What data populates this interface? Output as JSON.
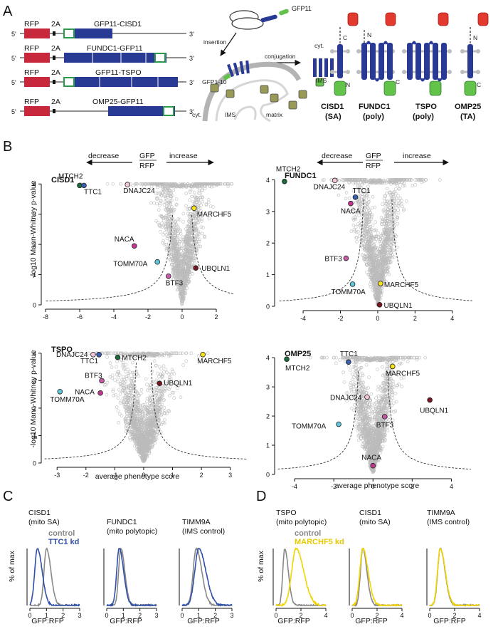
{
  "panel_labels": [
    "A",
    "B",
    "C",
    "D"
  ],
  "panel_a": {
    "constructs": [
      {
        "name": "GFP11-CISD1"
      },
      {
        "name": "FUNDC1-GFP11"
      },
      {
        "name": "GFP11-TSPO"
      },
      {
        "name": "OMP25-GFP11"
      }
    ],
    "rfp_label": "RFP",
    "t2a_label": "2A",
    "five_prime": "5'",
    "three_prime": "3'",
    "schematic": {
      "gfp11": "GFP11",
      "insertion": "insertion",
      "conjugation": "conjugation",
      "gfp1_10": "GFP1-10",
      "cyt": "cyt.",
      "ims": "IMS",
      "matrix": "matrix"
    },
    "topology": {
      "cyt": "cyt.",
      "ims": "IMS",
      "proteins": [
        {
          "name": "CISD1",
          "class": "(SA)",
          "nterm": "N",
          "cterm": "C"
        },
        {
          "name": "FUNDC1",
          "class": "(poly)",
          "nterm": "N",
          "cterm": "C"
        },
        {
          "name": "TSPO",
          "class": "(poly)",
          "nterm": "N",
          "cterm": "C"
        },
        {
          "name": "OMP25",
          "class": "(TA)",
          "nterm": "N",
          "cterm": "C"
        }
      ]
    }
  },
  "panel_b": {
    "direction_header": {
      "decrease": "decrease",
      "increase": "increase",
      "ratio_num": "GFP",
      "ratio_den": "RFP"
    },
    "ylabel": "-log10 Mann-Whitney p-value",
    "xlabel": "average phenotype score"
  },
  "panel_c": {
    "xlabel": "GFP:RFP",
    "ylabel": "% of max",
    "legend": {
      "control": "control",
      "kd": "TTC1 kd"
    },
    "plots": [
      {
        "title": "CISD1",
        "subtitle": "(mito SA)"
      },
      {
        "title": "FUNDC1",
        "subtitle": "(mito polytopic)"
      },
      {
        "title": "TIMM9A",
        "subtitle": "(IMS control)"
      }
    ]
  },
  "panel_d": {
    "xlabel": "GFP:RFP",
    "ylabel": "% of max",
    "legend": {
      "control": "control",
      "kd": "MARCHF5 kd"
    },
    "plots": [
      {
        "title": "TSPO",
        "subtitle": "(mito polytopic)"
      },
      {
        "title": "CISD1",
        "subtitle": "(mito SA)"
      },
      {
        "title": "TIMM9A",
        "subtitle": "(IMS control)"
      }
    ]
  },
  "colors": {
    "rfp": "#c8283b",
    "gfp_frame": "#2c9b4b",
    "gene": "#283a94",
    "gfp_barrel": "#63c24a",
    "red_barrel": "#e23a2f",
    "membrane": "#bdbdbd",
    "dots": "#bbbbbb",
    "ttc1": "#2f4fa8",
    "marchf5": "#f2d400",
    "control": "#888888",
    "MTCH2": "#1d6b3e",
    "TTC1": "#3a5fb0",
    "DNAJC24": "#f4c5d4",
    "MARCHF5": "#f7e11c",
    "NACA": "#c0398e",
    "TOMM70A": "#5ec7dc",
    "BTF3": "#c65aa6",
    "UBQLN1": "#7a1420"
  },
  "chart_data": [
    {
      "type": "scatter",
      "title": "CISD1",
      "xlabel": "average phenotype score",
      "ylabel": "-log10 Mann-Whitney p-value",
      "xlim": [
        -8,
        3
      ],
      "ylim": [
        0,
        4.1
      ],
      "xticks": [
        -8,
        -6,
        -4,
        -2,
        0,
        2
      ],
      "yticks": [
        0,
        1,
        2,
        3,
        4
      ],
      "cloud": {
        "count": 1500,
        "xspread": 0.7,
        "ymax": 4
      },
      "threshold": {
        "x0": 0.3,
        "c": 1.0
      },
      "highlights": [
        {
          "gene": "MTCH2",
          "x": -6.0,
          "y": 3.95
        },
        {
          "gene": "TTC1",
          "x": -5.75,
          "y": 3.95
        },
        {
          "gene": "DNAJC24",
          "x": -3.2,
          "y": 3.98
        },
        {
          "gene": "MARCHF5",
          "x": 0.7,
          "y": 3.2
        },
        {
          "gene": "NACA",
          "x": -2.8,
          "y": 1.95
        },
        {
          "gene": "TOMM70A",
          "x": -1.45,
          "y": 1.42
        },
        {
          "gene": "BTF3",
          "x": -0.8,
          "y": 0.95
        },
        {
          "gene": "UBQLN1",
          "x": 0.8,
          "y": 1.22
        }
      ]
    },
    {
      "type": "scatter",
      "title": "FUNDC1",
      "xlabel": "average phenotype score",
      "ylabel": "-log10 Mann-Whitney p-value",
      "xlim": [
        -5.3,
        5.0
      ],
      "ylim": [
        0,
        4.1
      ],
      "xticks": [
        -4,
        -2,
        0,
        2,
        4
      ],
      "yticks": [
        0,
        1,
        2,
        3,
        4
      ],
      "cloud": {
        "count": 1500,
        "xspread": 0.55,
        "ymax": 4
      },
      "threshold": {
        "x0": 0.6,
        "c": 0.8
      },
      "highlights": [
        {
          "gene": "MTCH2",
          "x": -5.0,
          "y": 3.95
        },
        {
          "gene": "DNAJC24",
          "x": -2.3,
          "y": 3.98
        },
        {
          "gene": "TTC1",
          "x": -1.2,
          "y": 3.45
        },
        {
          "gene": "NACA",
          "x": -1.45,
          "y": 3.25
        },
        {
          "gene": "BTF3",
          "x": -1.7,
          "y": 1.52
        },
        {
          "gene": "TOMM70A",
          "x": -1.35,
          "y": 0.7
        },
        {
          "gene": "MARCHF5",
          "x": 0.15,
          "y": 0.72
        },
        {
          "gene": "UBQLN1",
          "x": 0.1,
          "y": 0.05
        }
      ]
    },
    {
      "type": "scatter",
      "title": "TSPO",
      "xlabel": "average phenotype score",
      "ylabel": "-log10 Mann-Whitney p-value",
      "xlim": [
        -3.4,
        3.6
      ],
      "ylim": [
        0,
        4.1
      ],
      "xticks": [
        -3,
        -2,
        -1,
        0,
        1,
        2,
        3
      ],
      "yticks": [
        0,
        1,
        2,
        3,
        4
      ],
      "cloud": {
        "count": 1500,
        "xspread": 0.35,
        "ymax": 4
      },
      "threshold": {
        "x0": 0.2,
        "c": 0.5
      },
      "highlights": [
        {
          "gene": "DNAJC24",
          "x": -1.75,
          "y": 3.95
        },
        {
          "gene": "TTC1",
          "x": -1.55,
          "y": 3.95
        },
        {
          "gene": "MTCH2",
          "x": -0.9,
          "y": 3.85
        },
        {
          "gene": "MARCHF5",
          "x": 2.05,
          "y": 3.95
        },
        {
          "gene": "BTF3",
          "x": -1.45,
          "y": 3.0
        },
        {
          "gene": "NACA",
          "x": -1.5,
          "y": 2.55
        },
        {
          "gene": "UBQLN1",
          "x": 0.55,
          "y": 2.9
        },
        {
          "gene": "TOMM70A",
          "x": -2.9,
          "y": 2.6
        }
      ]
    },
    {
      "type": "scatter",
      "title": "OMP25",
      "xlabel": "average phenotype score",
      "ylabel": "-log10 Mann-Whitney p-value",
      "xlim": [
        -4.8,
        5.0
      ],
      "ylim": [
        0,
        4.1
      ],
      "xticks": [
        -4,
        -2,
        0,
        2,
        4
      ],
      "yticks": [
        0,
        1,
        2,
        3,
        4
      ],
      "cloud": {
        "count": 1500,
        "xspread": 0.5,
        "ymax": 4
      },
      "threshold": {
        "x0": 0.6,
        "c": 0.8
      },
      "highlights": [
        {
          "gene": "MTCH2",
          "x": -4.4,
          "y": 3.95
        },
        {
          "gene": "TTC1",
          "x": -1.25,
          "y": 3.85
        },
        {
          "gene": "MARCHF5",
          "x": 1.0,
          "y": 3.7
        },
        {
          "gene": "DNAJC24",
          "x": -0.3,
          "y": 2.65
        },
        {
          "gene": "UBQLN1",
          "x": 2.9,
          "y": 2.55
        },
        {
          "gene": "TOMM70A",
          "x": -1.75,
          "y": 1.72
        },
        {
          "gene": "BTF3",
          "x": 0.6,
          "y": 1.98
        },
        {
          "gene": "NACA",
          "x": 0.0,
          "y": 0.3
        }
      ]
    },
    {
      "type": "line",
      "title": "CISD1 (mito SA)",
      "xlabel": "GFP:RFP",
      "ylabel": "% of max",
      "xlim": [
        0,
        3
      ],
      "xticks": [
        0,
        1,
        2,
        3
      ],
      "ylim": [
        0,
        1
      ],
      "series": [
        {
          "name": "control",
          "mode": 1.0,
          "width": 0.28,
          "color": "#888888"
        },
        {
          "name": "TTC1 kd",
          "mode": 0.45,
          "width": 0.3,
          "color": "#2f4fa8"
        }
      ]
    },
    {
      "type": "line",
      "title": "FUNDC1 (mito polytopic)",
      "xlabel": "GFP:RFP",
      "ylabel": "% of max",
      "xlim": [
        0,
        3
      ],
      "xticks": [
        0,
        1,
        2,
        3
      ],
      "ylim": [
        0,
        1
      ],
      "series": [
        {
          "name": "control",
          "mode": 0.85,
          "width": 0.25,
          "color": "#888888"
        },
        {
          "name": "TTC1 kd",
          "mode": 0.75,
          "width": 0.28,
          "color": "#2f4fa8"
        }
      ]
    },
    {
      "type": "line",
      "title": "TIMM9A (IMS control)",
      "xlabel": "GFP:RFP",
      "ylabel": "% of max",
      "xlim": [
        0,
        3
      ],
      "xticks": [
        0,
        1,
        2,
        3
      ],
      "ylim": [
        0,
        1
      ],
      "series": [
        {
          "name": "control",
          "mode": 0.85,
          "width": 0.35,
          "color": "#888888"
        },
        {
          "name": "TTC1 kd",
          "mode": 1.0,
          "width": 0.45,
          "color": "#2f4fa8"
        }
      ]
    },
    {
      "type": "line",
      "title": "TSPO (mito polytopic)",
      "xlabel": "GFP:RFP",
      "ylabel": "% of max",
      "xlim": [
        0,
        4
      ],
      "xticks": [
        0,
        2,
        4
      ],
      "ylim": [
        0,
        1
      ],
      "series": [
        {
          "name": "control",
          "mode": 0.7,
          "width": 0.3,
          "color": "#888888"
        },
        {
          "name": "MARCHF5 kd",
          "mode": 1.6,
          "width": 0.65,
          "color": "#f2d400"
        }
      ]
    },
    {
      "type": "line",
      "title": "CISD1 (mito SA)",
      "xlabel": "GFP:RFP",
      "ylabel": "% of max",
      "xlim": [
        0,
        4
      ],
      "xticks": [
        0,
        2,
        4
      ],
      "ylim": [
        0,
        1
      ],
      "series": [
        {
          "name": "control",
          "mode": 0.85,
          "width": 0.35,
          "color": "#888888"
        },
        {
          "name": "MARCHF5 kd",
          "mode": 0.85,
          "width": 0.45,
          "color": "#f2d400"
        }
      ]
    },
    {
      "type": "line",
      "title": "TIMM9A (IMS control)",
      "xlabel": "GFP:RFP",
      "ylabel": "% of max",
      "xlim": [
        0,
        4
      ],
      "xticks": [
        0,
        2,
        4
      ],
      "ylim": [
        0,
        1
      ],
      "series": [
        {
          "name": "control",
          "mode": 0.85,
          "width": 0.4,
          "color": "#888888"
        },
        {
          "name": "MARCHF5 kd",
          "mode": 0.85,
          "width": 0.42,
          "color": "#f2d400"
        }
      ]
    }
  ]
}
